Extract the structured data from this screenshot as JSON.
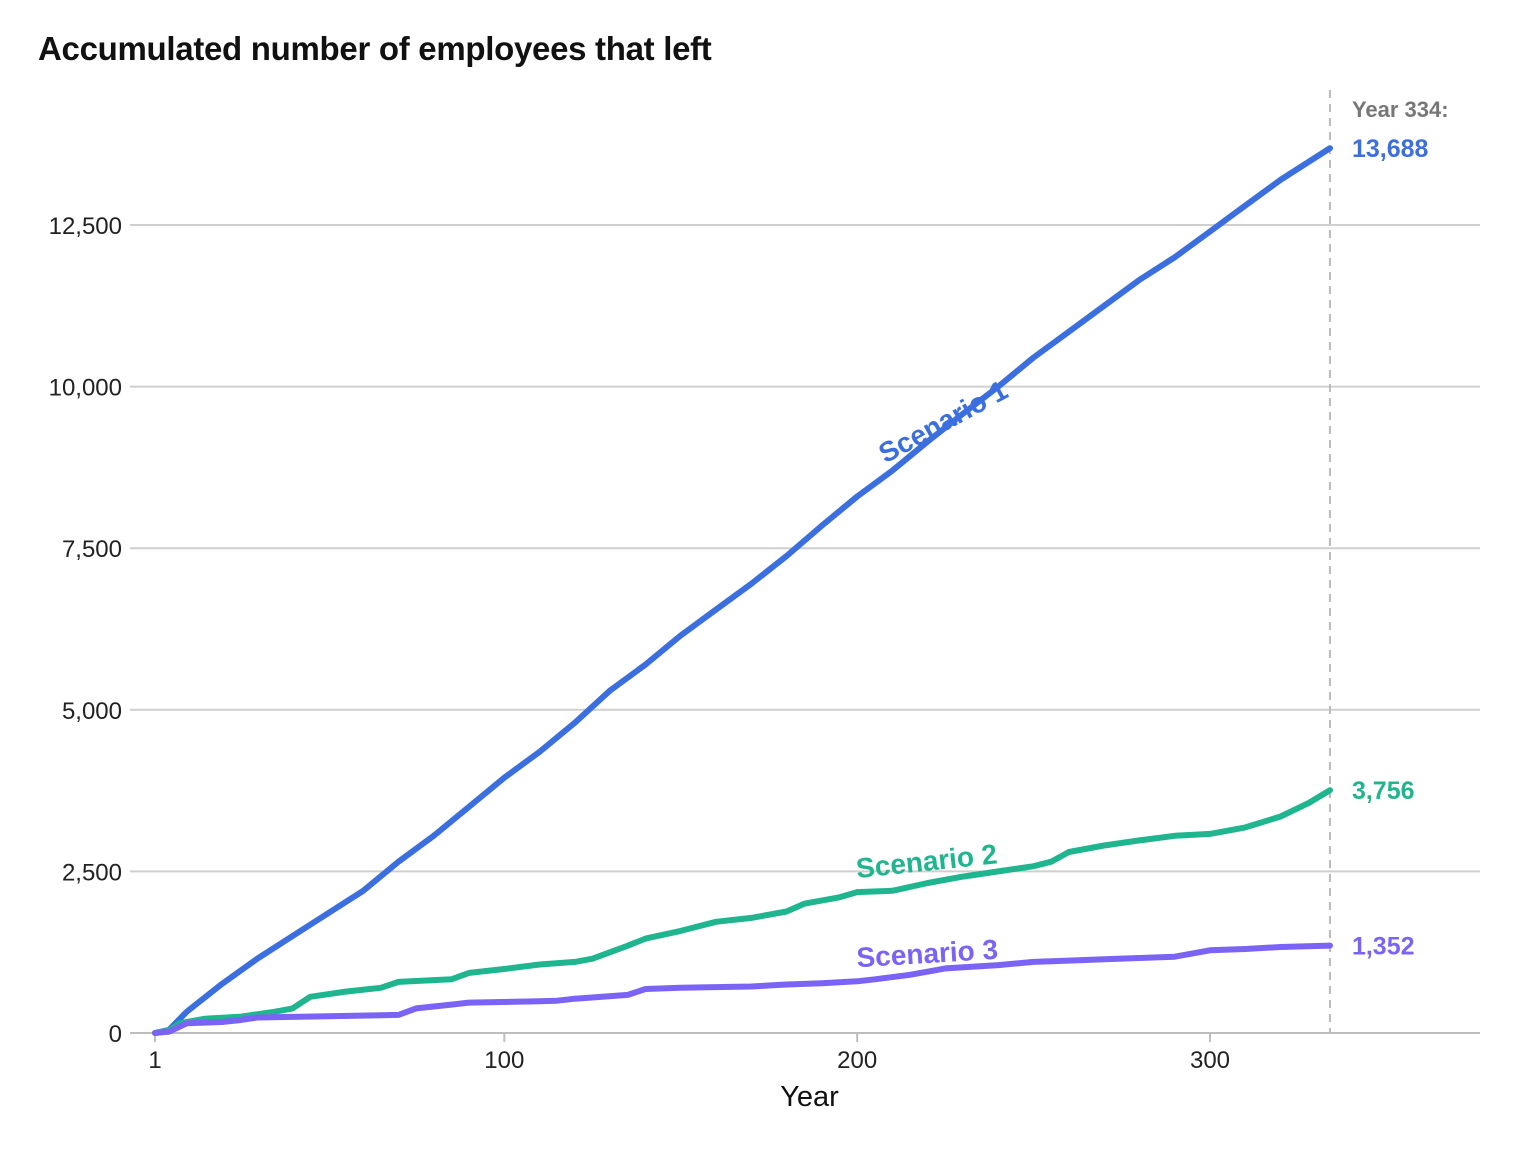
{
  "chart_data": {
    "type": "line",
    "title": "Accumulated number of employees that left",
    "xlabel": "Year",
    "ylabel": "",
    "xlim": [
      1,
      375
    ],
    "ylim": [
      0,
      13900
    ],
    "x_ticks": [
      1,
      100,
      200,
      300
    ],
    "y_ticks": [
      0,
      2500,
      5000,
      7500,
      10000,
      12500
    ],
    "grid": "horizontal",
    "marker": {
      "x": 334,
      "label": "Year 334:"
    },
    "series": [
      {
        "name": "Scenario 1",
        "color": "#3b6fe0",
        "end_value": 13688,
        "end_label": "13,688",
        "points": [
          [
            1,
            0
          ],
          [
            5,
            50
          ],
          [
            10,
            330
          ],
          [
            20,
            760
          ],
          [
            30,
            1150
          ],
          [
            40,
            1500
          ],
          [
            50,
            1850
          ],
          [
            60,
            2200
          ],
          [
            70,
            2650
          ],
          [
            80,
            3050
          ],
          [
            90,
            3500
          ],
          [
            100,
            3950
          ],
          [
            110,
            4350
          ],
          [
            120,
            4800
          ],
          [
            130,
            5300
          ],
          [
            140,
            5700
          ],
          [
            150,
            6150
          ],
          [
            160,
            6550
          ],
          [
            170,
            6950
          ],
          [
            180,
            7380
          ],
          [
            190,
            7850
          ],
          [
            200,
            8300
          ],
          [
            210,
            8700
          ],
          [
            220,
            9150
          ],
          [
            230,
            9580
          ],
          [
            240,
            10000
          ],
          [
            250,
            10450
          ],
          [
            260,
            10850
          ],
          [
            270,
            11250
          ],
          [
            280,
            11650
          ],
          [
            290,
            12000
          ],
          [
            300,
            12400
          ],
          [
            310,
            12800
          ],
          [
            320,
            13200
          ],
          [
            334,
            13688
          ]
        ]
      },
      {
        "name": "Scenario 2",
        "color": "#1fb58f",
        "end_value": 3756,
        "end_label": "3,756",
        "points": [
          [
            1,
            0
          ],
          [
            5,
            40
          ],
          [
            8,
            150
          ],
          [
            15,
            220
          ],
          [
            25,
            250
          ],
          [
            35,
            330
          ],
          [
            40,
            380
          ],
          [
            45,
            560
          ],
          [
            55,
            640
          ],
          [
            65,
            700
          ],
          [
            70,
            790
          ],
          [
            85,
            830
          ],
          [
            90,
            930
          ],
          [
            100,
            990
          ],
          [
            110,
            1060
          ],
          [
            120,
            1100
          ],
          [
            125,
            1150
          ],
          [
            135,
            1350
          ],
          [
            140,
            1460
          ],
          [
            150,
            1580
          ],
          [
            160,
            1720
          ],
          [
            170,
            1780
          ],
          [
            180,
            1880
          ],
          [
            185,
            2000
          ],
          [
            195,
            2100
          ],
          [
            200,
            2180
          ],
          [
            210,
            2200
          ],
          [
            220,
            2320
          ],
          [
            230,
            2420
          ],
          [
            240,
            2500
          ],
          [
            250,
            2580
          ],
          [
            255,
            2650
          ],
          [
            260,
            2800
          ],
          [
            270,
            2900
          ],
          [
            280,
            2980
          ],
          [
            290,
            3050
          ],
          [
            300,
            3080
          ],
          [
            310,
            3180
          ],
          [
            320,
            3350
          ],
          [
            328,
            3560
          ],
          [
            334,
            3756
          ]
        ]
      },
      {
        "name": "Scenario 3",
        "color": "#7b63f5",
        "end_value": 1352,
        "end_label": "1,352",
        "points": [
          [
            1,
            0
          ],
          [
            5,
            20
          ],
          [
            10,
            150
          ],
          [
            20,
            170
          ],
          [
            25,
            200
          ],
          [
            30,
            240
          ],
          [
            50,
            260
          ],
          [
            70,
            280
          ],
          [
            75,
            380
          ],
          [
            85,
            440
          ],
          [
            90,
            470
          ],
          [
            110,
            490
          ],
          [
            115,
            500
          ],
          [
            120,
            530
          ],
          [
            135,
            590
          ],
          [
            140,
            680
          ],
          [
            150,
            700
          ],
          [
            170,
            720
          ],
          [
            180,
            750
          ],
          [
            190,
            770
          ],
          [
            200,
            800
          ],
          [
            205,
            830
          ],
          [
            215,
            900
          ],
          [
            225,
            1000
          ],
          [
            240,
            1050
          ],
          [
            250,
            1100
          ],
          [
            260,
            1120
          ],
          [
            270,
            1140
          ],
          [
            280,
            1160
          ],
          [
            290,
            1180
          ],
          [
            300,
            1280
          ],
          [
            310,
            1300
          ],
          [
            320,
            1330
          ],
          [
            334,
            1352
          ]
        ]
      }
    ]
  }
}
